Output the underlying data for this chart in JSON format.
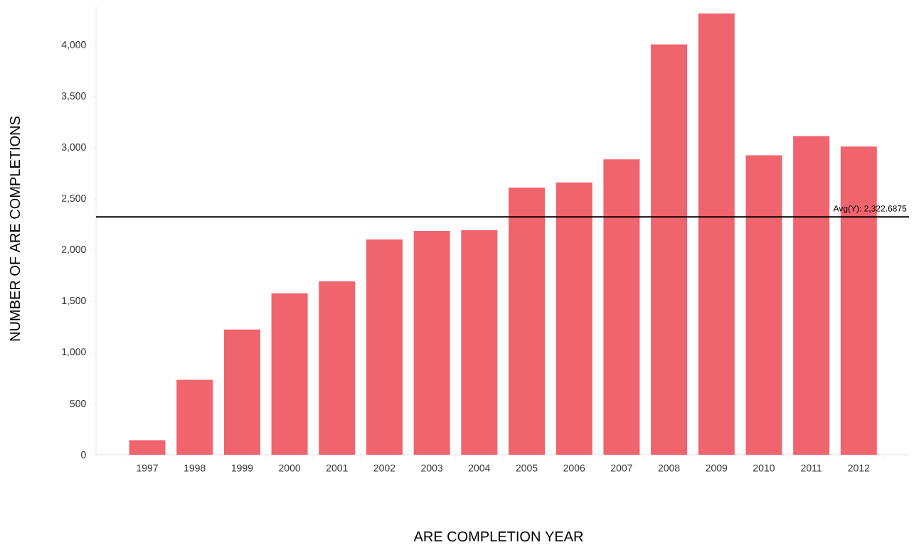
{
  "chart_data": {
    "type": "bar",
    "xlabel": "ARE COMPLETION YEAR",
    "ylabel": "NUMBER OF ARE COMPLETIONS",
    "categories": [
      "1997",
      "1998",
      "1999",
      "2000",
      "2001",
      "2002",
      "2003",
      "2004",
      "2005",
      "2006",
      "2007",
      "2008",
      "2009",
      "2010",
      "2011",
      "2012"
    ],
    "values": [
      143,
      733,
      1224,
      1577,
      1693,
      2103,
      2187,
      2193,
      2610,
      2660,
      2885,
      4009,
      4310,
      2926,
      3113,
      3011
    ],
    "color": "#f0646e",
    "ylim": [
      0,
      4380
    ],
    "yticks": [
      0,
      500,
      {
        "value": 1000,
        "label": "1,000"
      },
      {
        "value": 1500,
        "label": "1,500"
      },
      {
        "value": 2000,
        "label": "2,000"
      },
      {
        "value": 2500,
        "label": "2,500"
      },
      {
        "value": 3000,
        "label": "3,000"
      },
      {
        "value": 3500,
        "label": "3,500"
      },
      {
        "value": 4000,
        "label": "4,000"
      }
    ],
    "ref_lines": [
      {
        "axis": "y",
        "value": 2322.6875,
        "label": "Avg(Y): 2,322.6875",
        "color": "#000000"
      }
    ],
    "grid": false
  }
}
